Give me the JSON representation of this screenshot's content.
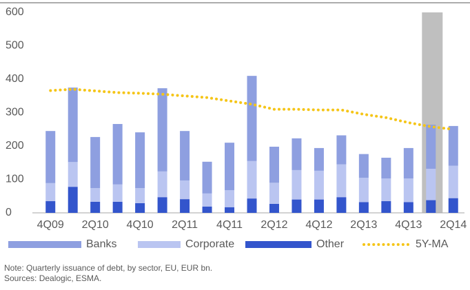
{
  "chart_data": {
    "type": "bar",
    "stacked": true,
    "categories": [
      "4Q09",
      null,
      "2Q10",
      null,
      "4Q10",
      null,
      "2Q11",
      null,
      "4Q11",
      null,
      "2Q12",
      null,
      "4Q12",
      null,
      "2Q13",
      null,
      "4Q13",
      null,
      "2Q14"
    ],
    "series": [
      {
        "name": "Banks",
        "color": "#8e9fe0",
        "values": [
          156,
          223,
          153,
          181,
          167,
          249,
          148,
          95,
          142,
          255,
          108,
          95,
          68,
          87,
          71,
          62,
          91,
          132,
          119
        ]
      },
      {
        "name": "Corporate",
        "color": "#bac5f1",
        "values": [
          54,
          74,
          41,
          52,
          45,
          77,
          56,
          39,
          51,
          112,
          63,
          88,
          86,
          98,
          73,
          68,
          71,
          94,
          97
        ]
      },
      {
        "name": "Other",
        "color": "#3355cc",
        "values": [
          35,
          78,
          33,
          33,
          29,
          47,
          41,
          19,
          17,
          43,
          27,
          40,
          40,
          47,
          32,
          35,
          32,
          38,
          44
        ]
      },
      {
        "name": "5Y-MA",
        "color": "#f5c518",
        "kind": "line",
        "values": [
          366,
          370,
          365,
          360,
          358,
          355,
          350,
          345,
          335,
          325,
          310,
          310,
          308,
          308,
          295,
          285,
          270,
          258,
          250
        ]
      }
    ],
    "highlight_index": 17,
    "highlight_color": "#bfbfbf",
    "ylim": [
      0,
      600
    ],
    "yticks": [
      0,
      100,
      200,
      300,
      400,
      500,
      600
    ],
    "notes": [
      "Note: Quarterly issuance of debt, by sector, EU, EUR bn.",
      "Sources: Dealogic, ESMA."
    ]
  }
}
